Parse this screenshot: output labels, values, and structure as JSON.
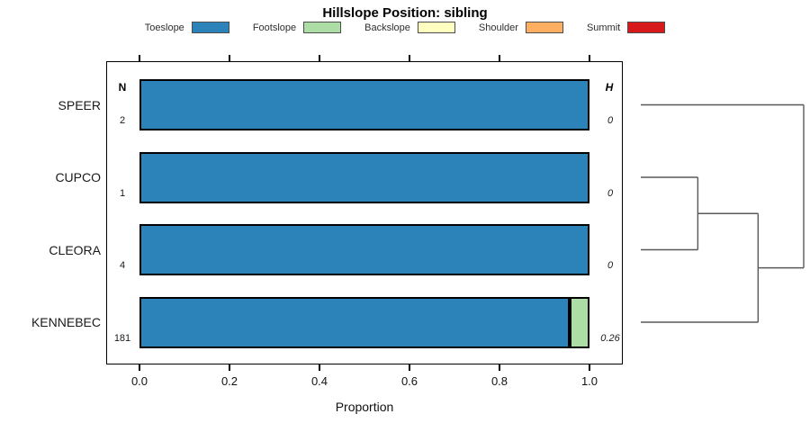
{
  "title": "Hillslope Position: sibling",
  "chart_data": {
    "type": "bar",
    "orientation": "horizontal_stacked",
    "title": "Hillslope Position: sibling",
    "xlabel": "Proportion",
    "xlim": [
      0,
      1
    ],
    "x_ticks": [
      "0.0",
      "0.2",
      "0.4",
      "0.6",
      "0.8",
      "1.0"
    ],
    "grid": false,
    "legend_position": "top",
    "legend": [
      {
        "label": "Toeslope",
        "color": "#2b83ba"
      },
      {
        "label": "Footslope",
        "color": "#abdda4"
      },
      {
        "label": "Backslope",
        "color": "#ffffbf"
      },
      {
        "label": "Shoulder",
        "color": "#fdae61"
      },
      {
        "label": "Summit",
        "color": "#d7191c"
      }
    ],
    "columns": {
      "n_header": "N",
      "h_header": "H"
    },
    "rows": [
      {
        "name": "SPEER",
        "n": "2",
        "h": "0",
        "segments": [
          {
            "category": "Toeslope",
            "value": 1.0
          }
        ]
      },
      {
        "name": "CUPCO",
        "n": "1",
        "h": "0",
        "segments": [
          {
            "category": "Toeslope",
            "value": 1.0
          }
        ]
      },
      {
        "name": "CLEORA",
        "n": "4",
        "h": "0",
        "segments": [
          {
            "category": "Toeslope",
            "value": 1.0
          }
        ]
      },
      {
        "name": "KENNEBEC",
        "n": "181",
        "h": "0.26",
        "segments": [
          {
            "category": "Toeslope",
            "value": 0.956
          },
          {
            "category": "Footslope",
            "value": 0.044
          }
        ]
      }
    ],
    "dendrogram": {
      "leaf_order": [
        "SPEER",
        "CUPCO",
        "CLEORA",
        "KENNEBEC"
      ],
      "merges": [
        {
          "a": {
            "type": "leaf",
            "index": 1
          },
          "b": {
            "type": "leaf",
            "index": 2
          },
          "height": 0.35
        },
        {
          "a": {
            "type": "merge",
            "index": 0
          },
          "b": {
            "type": "leaf",
            "index": 3
          },
          "height": 0.72
        },
        {
          "a": {
            "type": "merge",
            "index": 1
          },
          "b": {
            "type": "leaf",
            "index": 0
          },
          "height": 1.0
        }
      ]
    }
  }
}
